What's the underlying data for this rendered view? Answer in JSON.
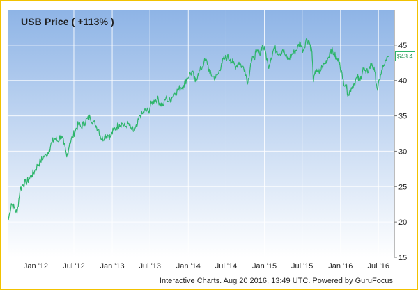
{
  "legend": {
    "label": "USB Price ( +113% )"
  },
  "last_price_label": "$43.4",
  "footer": "Interactive Charts. Aug 20 2016, 13:49 UTC. Powered by GuruFocus",
  "colors": {
    "line": "#2db56a",
    "bg_top": "#8eb4e6",
    "bg_bottom": "#ffffff",
    "frame": "#f2c200"
  },
  "chart_data": {
    "type": "line",
    "title": "",
    "xlabel": "",
    "ylabel": "",
    "ylim": [
      15,
      50
    ],
    "xlim": [
      "2011-08-22",
      "2016-09-15"
    ],
    "grid": true,
    "legend_position": "top-left",
    "y_ticks": [
      15,
      20,
      25,
      30,
      35,
      40,
      45
    ],
    "x_ticks": [
      {
        "date": "2012-01-01",
        "label": "Jan '12"
      },
      {
        "date": "2012-07-01",
        "label": "Jul '12"
      },
      {
        "date": "2013-01-01",
        "label": "Jan '13"
      },
      {
        "date": "2013-07-01",
        "label": "Jul '13"
      },
      {
        "date": "2014-01-01",
        "label": "Jan '14"
      },
      {
        "date": "2014-07-01",
        "label": "Jul '14"
      },
      {
        "date": "2015-01-01",
        "label": "Jan '15"
      },
      {
        "date": "2015-07-01",
        "label": "Jul '15"
      },
      {
        "date": "2016-01-01",
        "label": "Jan '16"
      },
      {
        "date": "2016-07-01",
        "label": "Jul '16"
      }
    ],
    "series": [
      {
        "name": "USB Price ( +113% )",
        "points": [
          [
            "2011-08-22",
            20.3
          ],
          [
            "2011-09-05",
            22.6
          ],
          [
            "2011-09-19",
            22.0
          ],
          [
            "2011-10-03",
            21.3
          ],
          [
            "2011-10-17",
            24.6
          ],
          [
            "2011-10-31",
            25.3
          ],
          [
            "2011-11-14",
            25.6
          ],
          [
            "2011-11-28",
            26.0
          ],
          [
            "2011-12-12",
            26.6
          ],
          [
            "2011-12-26",
            27.2
          ],
          [
            "2012-01-09",
            28.0
          ],
          [
            "2012-01-23",
            28.6
          ],
          [
            "2012-02-06",
            29.2
          ],
          [
            "2012-02-20",
            29.4
          ],
          [
            "2012-03-05",
            30.3
          ],
          [
            "2012-03-19",
            31.3
          ],
          [
            "2012-04-02",
            31.8
          ],
          [
            "2012-04-16",
            31.4
          ],
          [
            "2012-04-30",
            32.3
          ],
          [
            "2012-05-14",
            31.0
          ],
          [
            "2012-05-28",
            29.2
          ],
          [
            "2012-06-11",
            31.2
          ],
          [
            "2012-06-25",
            32.0
          ],
          [
            "2012-07-09",
            33.0
          ],
          [
            "2012-07-23",
            33.8
          ],
          [
            "2012-08-06",
            33.4
          ],
          [
            "2012-08-20",
            34.0
          ],
          [
            "2012-09-03",
            34.6
          ],
          [
            "2012-09-17",
            34.8
          ],
          [
            "2012-10-01",
            34.2
          ],
          [
            "2012-10-15",
            33.6
          ],
          [
            "2012-10-29",
            33.0
          ],
          [
            "2012-11-12",
            31.6
          ],
          [
            "2012-11-26",
            32.2
          ],
          [
            "2012-12-10",
            32.3
          ],
          [
            "2012-12-24",
            32.0
          ],
          [
            "2013-01-07",
            33.0
          ],
          [
            "2013-01-21",
            33.4
          ],
          [
            "2013-02-04",
            33.8
          ],
          [
            "2013-02-18",
            33.9
          ],
          [
            "2013-03-04",
            33.4
          ],
          [
            "2013-03-18",
            33.9
          ],
          [
            "2013-04-01",
            33.2
          ],
          [
            "2013-04-15",
            32.8
          ],
          [
            "2013-04-29",
            33.4
          ],
          [
            "2013-05-13",
            35.0
          ],
          [
            "2013-05-27",
            35.3
          ],
          [
            "2013-06-10",
            35.8
          ],
          [
            "2013-06-24",
            35.6
          ],
          [
            "2013-07-08",
            36.8
          ],
          [
            "2013-07-22",
            37.2
          ],
          [
            "2013-08-05",
            37.4
          ],
          [
            "2013-08-19",
            36.8
          ],
          [
            "2013-09-02",
            36.4
          ],
          [
            "2013-09-16",
            37.6
          ],
          [
            "2013-09-30",
            37.0
          ],
          [
            "2013-10-14",
            37.6
          ],
          [
            "2013-10-28",
            38.2
          ],
          [
            "2013-11-11",
            38.6
          ],
          [
            "2013-11-25",
            39.0
          ],
          [
            "2013-12-09",
            39.3
          ],
          [
            "2013-12-23",
            40.2
          ],
          [
            "2014-01-06",
            40.8
          ],
          [
            "2014-01-20",
            41.2
          ],
          [
            "2014-02-03",
            39.8
          ],
          [
            "2014-02-17",
            41.0
          ],
          [
            "2014-03-03",
            41.6
          ],
          [
            "2014-03-17",
            42.6
          ],
          [
            "2014-03-31",
            42.8
          ],
          [
            "2014-04-14",
            41.0
          ],
          [
            "2014-04-28",
            40.6
          ],
          [
            "2014-05-12",
            40.4
          ],
          [
            "2014-05-26",
            41.0
          ],
          [
            "2014-06-09",
            42.4
          ],
          [
            "2014-06-23",
            43.0
          ],
          [
            "2014-07-07",
            43.4
          ],
          [
            "2014-07-21",
            43.0
          ],
          [
            "2014-08-04",
            42.4
          ],
          [
            "2014-08-18",
            42.0
          ],
          [
            "2014-09-01",
            42.6
          ],
          [
            "2014-09-15",
            42.0
          ],
          [
            "2014-09-29",
            41.6
          ],
          [
            "2014-10-13",
            39.6
          ],
          [
            "2014-10-27",
            42.4
          ],
          [
            "2014-11-10",
            43.2
          ],
          [
            "2014-11-24",
            44.0
          ],
          [
            "2014-12-08",
            43.8
          ],
          [
            "2014-12-22",
            45.0
          ],
          [
            "2015-01-05",
            44.2
          ],
          [
            "2015-01-19",
            42.0
          ],
          [
            "2015-02-02",
            43.2
          ],
          [
            "2015-02-16",
            44.6
          ],
          [
            "2015-03-02",
            44.2
          ],
          [
            "2015-03-16",
            43.8
          ],
          [
            "2015-03-30",
            44.4
          ],
          [
            "2015-04-13",
            43.4
          ],
          [
            "2015-04-27",
            43.0
          ],
          [
            "2015-05-11",
            43.6
          ],
          [
            "2015-05-25",
            44.0
          ],
          [
            "2015-06-08",
            44.6
          ],
          [
            "2015-06-22",
            45.4
          ],
          [
            "2015-07-06",
            44.2
          ],
          [
            "2015-07-20",
            45.8
          ],
          [
            "2015-08-03",
            45.6
          ],
          [
            "2015-08-17",
            44.0
          ],
          [
            "2015-08-24",
            39.8
          ],
          [
            "2015-09-07",
            41.6
          ],
          [
            "2015-09-21",
            41.0
          ],
          [
            "2015-10-05",
            42.0
          ],
          [
            "2015-10-19",
            42.4
          ],
          [
            "2015-11-02",
            43.2
          ],
          [
            "2015-11-16",
            44.4
          ],
          [
            "2015-11-30",
            43.8
          ],
          [
            "2015-12-14",
            43.0
          ],
          [
            "2015-12-28",
            42.6
          ],
          [
            "2016-01-11",
            40.2
          ],
          [
            "2016-01-25",
            39.4
          ],
          [
            "2016-02-08",
            38.0
          ],
          [
            "2016-02-22",
            39.0
          ],
          [
            "2016-03-07",
            39.6
          ],
          [
            "2016-03-21",
            40.4
          ],
          [
            "2016-04-04",
            40.0
          ],
          [
            "2016-04-18",
            41.8
          ],
          [
            "2016-05-02",
            41.0
          ],
          [
            "2016-05-16",
            41.6
          ],
          [
            "2016-05-30",
            42.4
          ],
          [
            "2016-06-13",
            41.2
          ],
          [
            "2016-06-27",
            38.6
          ],
          [
            "2016-07-11",
            40.8
          ],
          [
            "2016-07-25",
            42.0
          ],
          [
            "2016-08-08",
            42.8
          ],
          [
            "2016-08-19",
            43.4
          ]
        ]
      }
    ]
  }
}
